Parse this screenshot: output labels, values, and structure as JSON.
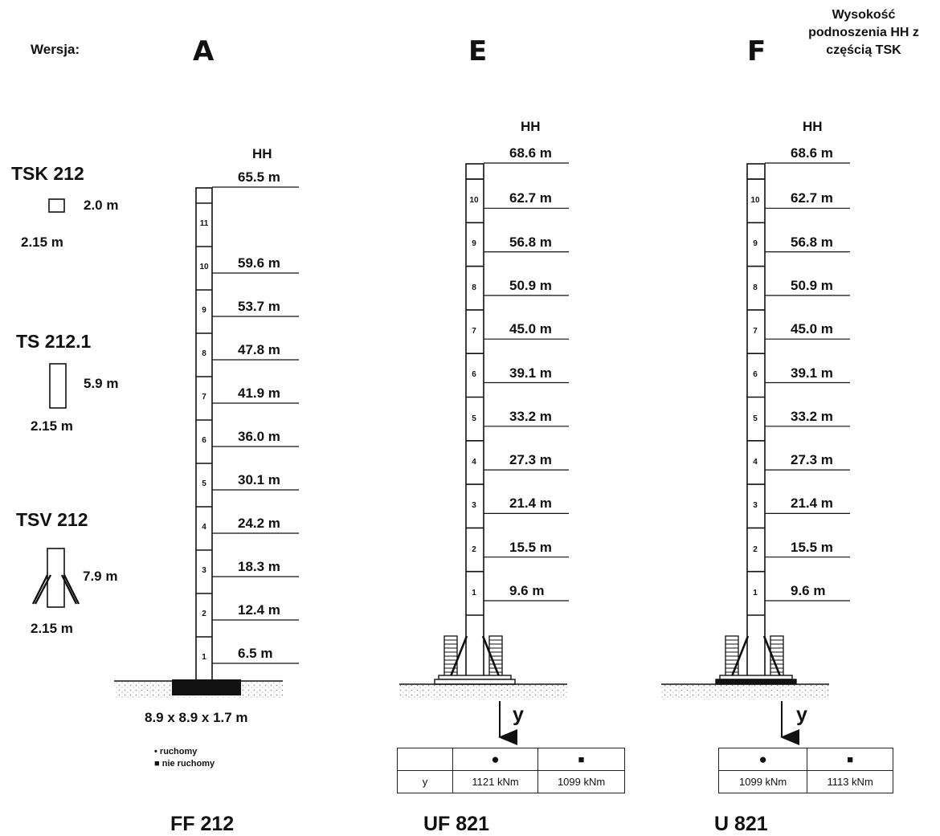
{
  "header": {
    "version_label": "Wersja:",
    "version_letters": [
      "A",
      "E",
      "F"
    ],
    "note_lines": [
      "Wysokość",
      "podnoszenia HH z",
      "częścią   TSK"
    ]
  },
  "left_panel": {
    "sections": [
      {
        "title": "TSK 212",
        "height": "2.0 m",
        "width": "2.15 m"
      },
      {
        "title": "TS 212.1",
        "height": "5.9 m",
        "width": "2.15 m"
      },
      {
        "title": "TSV 212",
        "height": "7.9 m",
        "width": "2.15 m"
      }
    ],
    "legend": {
      "mobile_symbol": "•",
      "mobile_label": "ruchomy",
      "fixed_symbol": "■",
      "fixed_label": "nie ruchomy"
    }
  },
  "towers": {
    "hh_label": "HH",
    "A": {
      "model": "FF 212",
      "foundation": "8.9 x 8.9 x 1.7 m",
      "heights": [
        "6.5 m",
        "12.4 m",
        "18.3 m",
        "24.2 m",
        "30.1 m",
        "36.0 m",
        "41.9 m",
        "47.8 m",
        "53.7 m",
        "59.6 m",
        "65.5 m"
      ],
      "section_numbers": [
        "1",
        "2",
        "3",
        "4",
        "5",
        "6",
        "7",
        "8",
        "9",
        "10",
        "11"
      ]
    },
    "E": {
      "model": "UF 821",
      "heights": [
        "9.6 m",
        "15.5 m",
        "21.4 m",
        "27.3 m",
        "33.2 m",
        "39.1 m",
        "45.0 m",
        "50.9 m",
        "56.8 m",
        "62.7 m",
        "68.6 m"
      ],
      "section_numbers": [
        "1",
        "2",
        "3",
        "4",
        "5",
        "6",
        "7",
        "8",
        "9",
        "10"
      ],
      "arrow_label": "y",
      "moment_table": {
        "header": [
          "",
          "●",
          "■"
        ],
        "row": [
          "y",
          "1121 kNm",
          "1099 kNm"
        ]
      }
    },
    "F": {
      "model": "U 821",
      "heights": [
        "9.6 m",
        "15.5 m",
        "21.4 m",
        "27.3 m",
        "33.2 m",
        "39.1 m",
        "45.0 m",
        "50.9 m",
        "56.8 m",
        "62.7 m",
        "68.6 m"
      ],
      "section_numbers": [
        "1",
        "2",
        "3",
        "4",
        "5",
        "6",
        "7",
        "8",
        "9",
        "10"
      ],
      "arrow_label": "y",
      "moment_table": {
        "header": [
          "●",
          "■"
        ],
        "row": [
          "1099 kNm",
          "1113 kNm"
        ]
      }
    }
  }
}
